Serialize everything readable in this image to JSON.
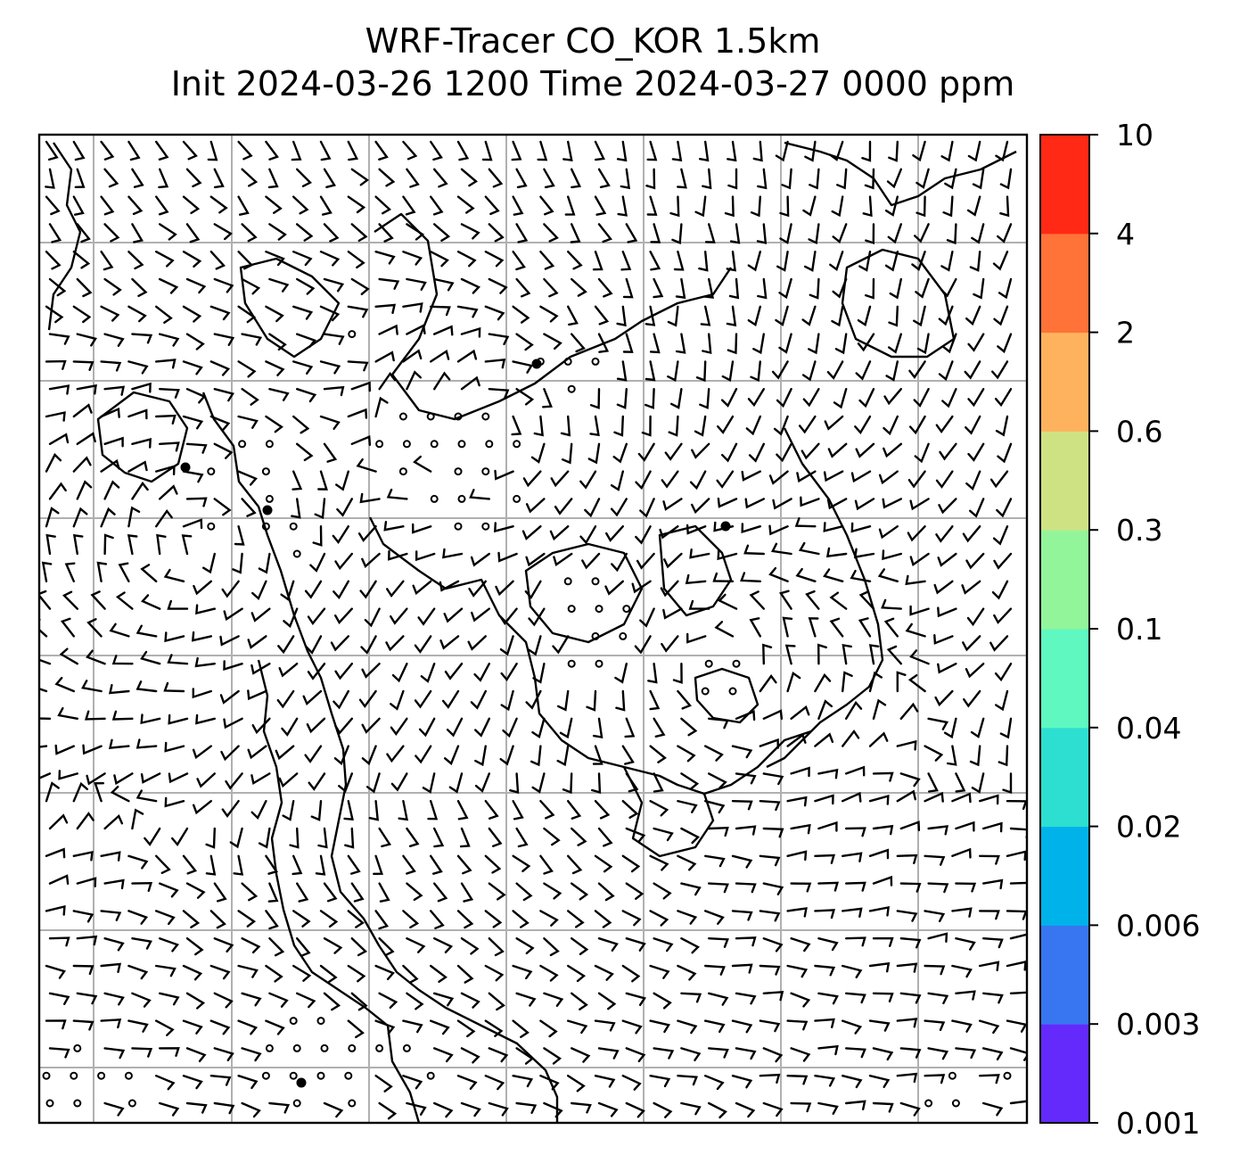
{
  "title": {
    "line1": "WRF-Tracer CO_KOR 1.5km",
    "line2": "Init 2024-03-26 1200 Time 2024-03-27 0000 ppm"
  },
  "colorbar": {
    "ticks": [
      "0.001",
      "0.003",
      "0.006",
      "0.02",
      "0.04",
      "0.1",
      "0.3",
      "0.6",
      "2",
      "4",
      "10"
    ],
    "colors": [
      "#6429fb",
      "#3776f0",
      "#00b2ea",
      "#2ddfd0",
      "#5ff8c0",
      "#93f59a",
      "#cfe283",
      "#ffb25e",
      "#ff7238",
      "#ff2915"
    ]
  },
  "map": {
    "gridlines": "on",
    "coastlines": "black",
    "wind_barbs": "black"
  }
}
